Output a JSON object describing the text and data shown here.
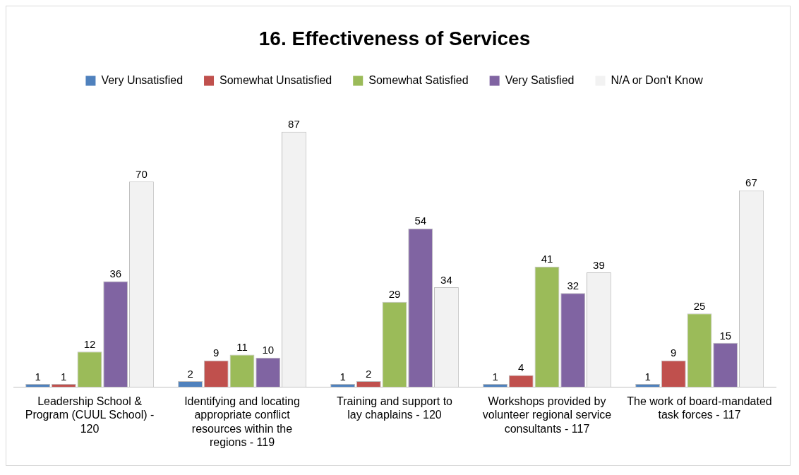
{
  "chart_data": {
    "type": "bar",
    "title": "16. Effectiveness of Services",
    "categories": [
      "Leadership School & Program (CUUL School) - 120",
      "Identifying and locating appropriate conflict resources within the regions - 119",
      "Training and support to lay chaplains - 120",
      "Workshops provided by volunteer regional service consultants - 117",
      "The work of board-mandated task forces - 117"
    ],
    "series": [
      {
        "name": "Very Unsatisfied",
        "color": "#4f81bd",
        "values": [
          1,
          2,
          1,
          1,
          1
        ]
      },
      {
        "name": "Somewhat Unsatisfied",
        "color": "#c0504d",
        "values": [
          1,
          9,
          2,
          4,
          9
        ]
      },
      {
        "name": "Somewhat Satisfied",
        "color": "#9bbb59",
        "values": [
          12,
          11,
          29,
          41,
          25
        ]
      },
      {
        "name": "Very Satisfied",
        "color": "#8064a2",
        "values": [
          36,
          10,
          54,
          32,
          15
        ]
      },
      {
        "name": "N/A or Don't Know",
        "color": "#f2f2f2",
        "values": [
          70,
          87,
          34,
          39,
          67
        ]
      }
    ],
    "data_labels": true,
    "legend": "top",
    "grid": false
  }
}
